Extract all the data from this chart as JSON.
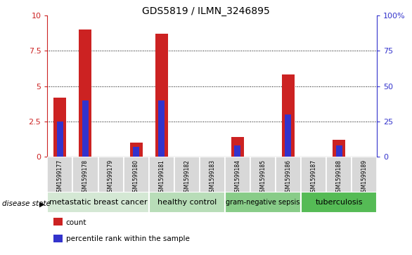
{
  "title": "GDS5819 / ILMN_3246895",
  "samples": [
    "GSM1599177",
    "GSM1599178",
    "GSM1599179",
    "GSM1599180",
    "GSM1599181",
    "GSM1599182",
    "GSM1599183",
    "GSM1599184",
    "GSM1599185",
    "GSM1599186",
    "GSM1599187",
    "GSM1599188",
    "GSM1599189"
  ],
  "count_values": [
    4.2,
    9.0,
    0.0,
    1.0,
    8.7,
    0.0,
    0.0,
    1.4,
    0.0,
    5.8,
    0.0,
    1.2,
    0.0
  ],
  "percentile_values": [
    25.0,
    40.0,
    0.0,
    7.0,
    40.0,
    0.0,
    0.0,
    8.0,
    0.0,
    30.0,
    0.0,
    8.0,
    0.0
  ],
  "ylim": [
    0,
    10
  ],
  "yticks": [
    0,
    2.5,
    5.0,
    7.5,
    10
  ],
  "ytick_labels": [
    "0",
    "2.5",
    "5",
    "7.5",
    "10"
  ],
  "y2lim": [
    0,
    100
  ],
  "y2ticks": [
    0,
    25,
    50,
    75,
    100
  ],
  "y2tick_labels": [
    "0",
    "25",
    "50",
    "75",
    "100%"
  ],
  "bar_color": "#cc2222",
  "blue_color": "#3333cc",
  "groups": [
    {
      "label": "metastatic breast cancer",
      "start": 0,
      "end": 4,
      "color": "#d4e8d4",
      "fontsize": 8
    },
    {
      "label": "healthy control",
      "start": 4,
      "end": 7,
      "color": "#b8ddb8",
      "fontsize": 8
    },
    {
      "label": "gram-negative sepsis",
      "start": 7,
      "end": 10,
      "color": "#88cc88",
      "fontsize": 7
    },
    {
      "label": "tuberculosis",
      "start": 10,
      "end": 13,
      "color": "#55bb55",
      "fontsize": 8
    }
  ],
  "legend_items": [
    {
      "label": "count",
      "color": "#cc2222"
    },
    {
      "label": "percentile rank within the sample",
      "color": "#3333cc"
    }
  ],
  "xlabel_group": "disease state",
  "bar_width": 0.5,
  "blue_bar_width": 0.25
}
